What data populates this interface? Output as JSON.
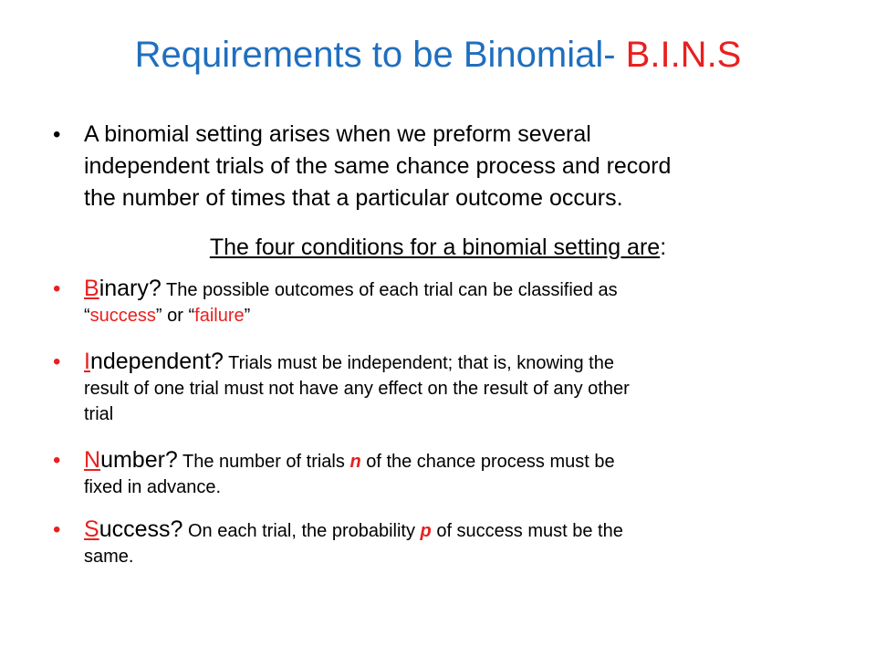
{
  "title": {
    "main": "Requirements to be Binomial- ",
    "accent": "B.I.N.S"
  },
  "intro": {
    "bullet": "•",
    "lines": [
      "A binomial setting arises when we preform several",
      "independent trials of the same chance process and record",
      "the number of times that a particular outcome occurs."
    ]
  },
  "subheading": {
    "text": "The four conditions for a binomial setting are",
    "colon": ":"
  },
  "conditions": [
    {
      "bullet": "•",
      "letter": "B",
      "word_rest": "inary?",
      "line1": " The possible outcomes of each trial can be classified as",
      "q_open": "“",
      "success": "success",
      "q_mid": "” or “",
      "failure": "failure",
      "q_close": "”"
    },
    {
      "bullet": "•",
      "letter": "I",
      "word_rest": "ndependent?",
      "line1": " Trials must be independent; that is, knowing the",
      "line2": "result of one trial must not have any effect on the result of any other",
      "line3": "trial"
    },
    {
      "bullet": "•",
      "letter": "N",
      "word_rest": "umber?",
      "line1_pre": " The number of trials ",
      "var": "n",
      "line1_post": " of the chance process must be",
      "line2": "fixed in advance."
    },
    {
      "bullet": "•",
      "letter": "S",
      "word_rest": "uccess?",
      "line1_pre": " On each trial, the probability ",
      "var": "p",
      "line1_post": " of success must be the",
      "line2": "same."
    }
  ],
  "colors": {
    "title_blue": "#1f6fbf",
    "accent_red": "#e8201f",
    "text": "#000000"
  }
}
